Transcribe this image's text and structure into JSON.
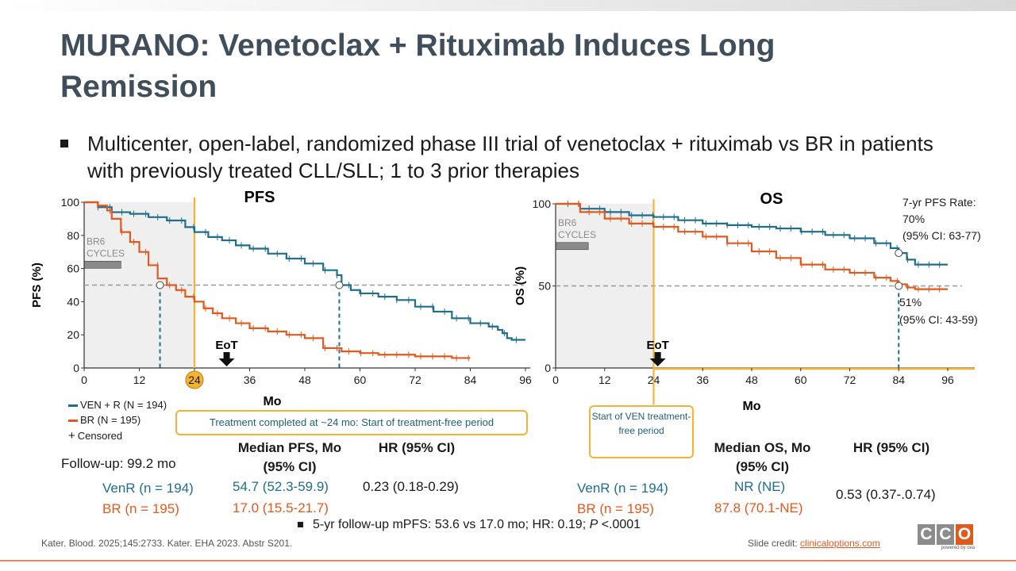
{
  "title": "MURANO: Venetoclax + Rituximab Induces Long Remission",
  "bullet": "Multicenter, open-label, randomized phase III trial of venetoclax + rituximab vs BR in patients with previously treated CLL/SLL; 1 to 3 prior therapies",
  "colors": {
    "venr": "#1f6e8c",
    "br": "#e05a1e",
    "accent": "#f5b335",
    "title": "#3f4e5a"
  },
  "chart_data": [
    {
      "type": "line",
      "title": "PFS",
      "xlabel": "Mo",
      "ylabel": "PFS (%)",
      "xlim": [
        0,
        96
      ],
      "ylim": [
        0,
        100
      ],
      "xticks": [
        "0",
        "12",
        "24",
        "36",
        "48",
        "60",
        "72",
        "84",
        "96"
      ],
      "yticks": [
        "0",
        "20",
        "40",
        "60",
        "80",
        "100"
      ],
      "highlight_tick": "24",
      "shaded_label": "BR6\nCYCLES",
      "shaded_until": 24,
      "br6_bar_until": 8,
      "eot_label": "EoT",
      "eot_x": 31,
      "reference_y": 50,
      "medians": [
        16.5,
        55.5
      ],
      "series": [
        {
          "name": "VEN + R (N = 194)",
          "x": [
            0,
            3,
            6,
            10,
            14,
            18,
            22,
            24,
            27,
            30,
            33,
            36,
            40,
            44,
            48,
            52,
            55,
            56,
            58,
            60,
            64,
            68,
            72,
            76,
            80,
            84,
            88,
            90,
            91,
            92,
            93,
            96
          ],
          "y": [
            100,
            97,
            94,
            93,
            91,
            89,
            85,
            82,
            79,
            77,
            74,
            72,
            69,
            66,
            63,
            59,
            56,
            50,
            47,
            45,
            43,
            41,
            37,
            34,
            30,
            27,
            25,
            23,
            21,
            18,
            17,
            17
          ]
        },
        {
          "name": "BR (N = 195)",
          "x": [
            0,
            3,
            5,
            6,
            8,
            10,
            12,
            14,
            16,
            18,
            20,
            22,
            24,
            26,
            28,
            30,
            33,
            36,
            40,
            44,
            48,
            52,
            56,
            60,
            64,
            68,
            72,
            76,
            80,
            84
          ],
          "y": [
            100,
            98,
            95,
            90,
            82,
            76,
            70,
            62,
            54,
            50,
            47,
            43,
            40,
            36,
            33,
            30,
            27,
            24,
            22,
            20,
            18,
            12,
            10,
            9,
            8,
            8,
            7,
            7,
            6,
            6
          ]
        }
      ],
      "legend": [
        "VEN + R (N = 194)",
        "BR (N = 195)",
        "Censored"
      ]
    },
    {
      "type": "line",
      "title": "OS",
      "xlabel": "Mo",
      "ylabel": "OS (%)",
      "xlim": [
        0,
        96
      ],
      "ylim": [
        0,
        100
      ],
      "xticks": [
        "0",
        "12",
        "24",
        "36",
        "48",
        "60",
        "72",
        "84",
        "96"
      ],
      "yticks": [
        "0",
        "50",
        "100"
      ],
      "shaded_label": "BR6\nCYCLES",
      "shaded_until": 24,
      "br6_bar_until": 8,
      "eot_label": "EoT",
      "eot_x": 25,
      "reference_y": 50,
      "medians": [
        84
      ],
      "series": [
        {
          "name": "VEN + R",
          "x": [
            0,
            6,
            12,
            18,
            24,
            30,
            36,
            42,
            48,
            54,
            60,
            66,
            72,
            78,
            82,
            84,
            86,
            88,
            96
          ],
          "y": [
            100,
            97,
            95,
            93,
            92,
            90,
            88,
            87,
            86,
            85,
            83,
            81,
            79,
            76,
            73,
            70,
            66,
            63,
            63
          ]
        },
        {
          "name": "BR",
          "x": [
            0,
            6,
            12,
            18,
            24,
            30,
            36,
            42,
            48,
            54,
            60,
            66,
            72,
            78,
            82,
            84,
            86,
            88,
            96
          ],
          "y": [
            100,
            95,
            91,
            88,
            86,
            83,
            80,
            76,
            71,
            67,
            63,
            60,
            58,
            55,
            53,
            51,
            49,
            48,
            48
          ]
        }
      ],
      "annotation_top": "7-yr PFS Rate:\n70%\n(95% CI: 63-77)",
      "annotation_bottom": "51%\n(95% CI: 43-59)"
    }
  ],
  "legend_labels": {
    "venr": "VEN + R (N = 194)",
    "br": "BR (N = 195)",
    "censored": "Censored"
  },
  "callouts": {
    "pfs": "Treatment completed at ~24 mo: Start of treatment-free period",
    "os": "Start of VEN treatment-free period"
  },
  "followup": "Follow-up: 99.2 mo",
  "pfs_table": {
    "median_header": "Median PFS, Mo (95% CI)",
    "hr_header": "HR (95% CI)",
    "venr_label": "VenR (n = 194)",
    "br_label": "BR (n = 195)",
    "venr_median": "54.7 (52.3-59.9)",
    "br_median": "17.0 (15.5-21.7)",
    "hr": "0.23 (0.18-0.29)"
  },
  "os_table": {
    "median_header": "Median OS, Mo (95% CI)",
    "hr_header": "HR (95% CI)",
    "venr_label": "VenR (n = 194)",
    "br_label": "BR (n = 195)",
    "venr_median": "NR (NE)",
    "br_median": "87.8 (70.1-NE)",
    "hr": "0.53 (0.37-.0.74)"
  },
  "note_prefix": "5-yr follow-up mPFS: 53.6 vs 17.0 mo; HR: 0.19; ",
  "note_p": "P",
  "note_suffix": " <.0001",
  "footer": "Kater. Blood. 2025;145:2733. Kater. EHA 2023. Abstr S201.",
  "credit_label": "Slide credit: ",
  "credit_link": "clinicaloptions.com",
  "logo": {
    "letters": [
      "C",
      "C",
      "O"
    ],
    "tagline": "powered by cea"
  }
}
